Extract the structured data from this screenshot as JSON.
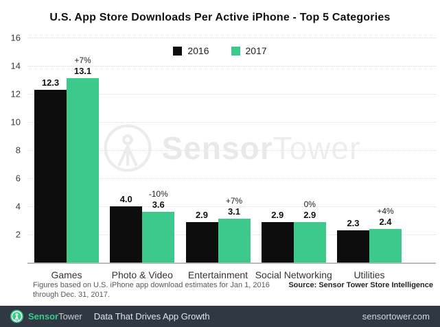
{
  "title": "U.S. App Store Downloads Per Active iPhone - Top 5 Categories",
  "colors": {
    "bar_2016": "#0d0d0d",
    "bar_2017": "#3ec98c",
    "footer_bg": "#2f3843",
    "accent_green": "#3ec98c",
    "gridline": "#d8d8d8"
  },
  "chart_data": {
    "type": "bar",
    "title": "U.S. App Store Downloads Per Active iPhone - Top 5 Categories",
    "categories": [
      "Games",
      "Photo & Video",
      "Entertainment",
      "Social Networking",
      "Utilities"
    ],
    "series": [
      {
        "name": "2016",
        "color": "#0d0d0d",
        "values": [
          12.3,
          4.0,
          2.9,
          2.9,
          2.3
        ]
      },
      {
        "name": "2017",
        "color": "#3ec98c",
        "values": [
          13.1,
          3.6,
          3.1,
          2.9,
          2.4
        ]
      }
    ],
    "change_labels": [
      "+7%",
      "-10%",
      "+7%",
      "0%",
      "+4%"
    ],
    "xlabel": "",
    "ylabel": "",
    "ylim": [
      0,
      16
    ],
    "yticks": [
      16,
      14,
      12,
      10,
      8,
      6,
      4,
      2
    ],
    "grid": "horizontal-dotted",
    "legend_position": "top-center"
  },
  "watermark": {
    "text_bold": "Sensor",
    "text_light": "Tower"
  },
  "footnote": {
    "line1": "Figures based on U.S. iPhone app download estimates for Jan 1, 2016",
    "line2": "through Dec. 31, 2017."
  },
  "source": "Source: Sensor Tower Store Intelligence",
  "footer": {
    "brand_bold": "Sensor",
    "brand_light": "Tower",
    "tagline": "Data That Drives App Growth",
    "url": "sensortower.com"
  }
}
